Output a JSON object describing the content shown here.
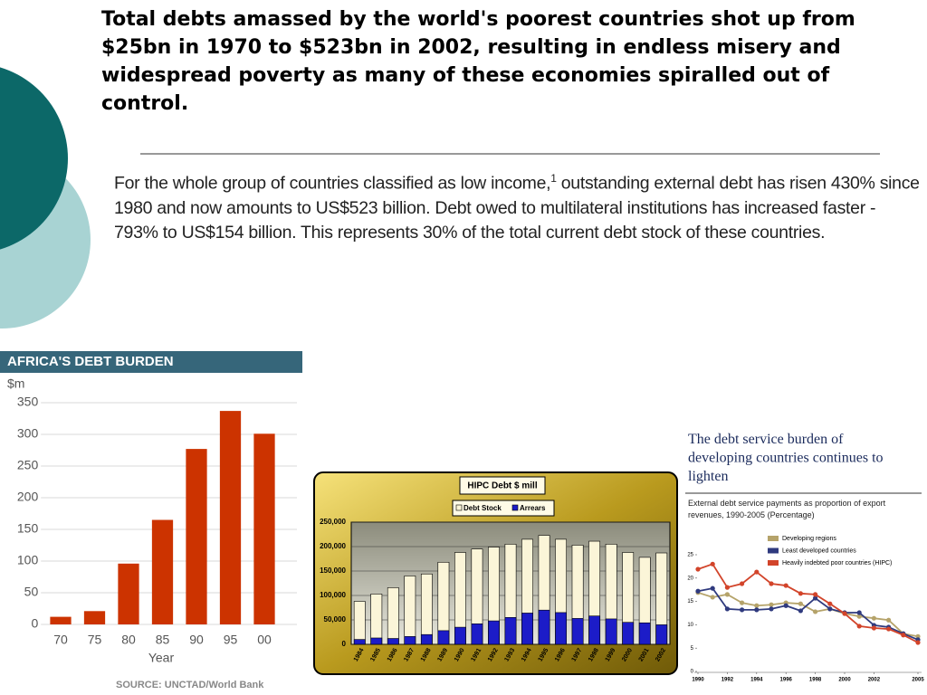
{
  "title": "Total debts amassed by the world's poorest countries shot up from $25bn in 1970 to $523bn in 2002, resulting in endless misery and widespread poverty as many of these economies spiralled out of control.",
  "paragraph": {
    "before": "For the whole group of countries classified as low income,",
    "footnote": "1",
    "after": " outstanding external debt has risen 430% since 1980 and now amounts to US$523 billion. Debt owed to multilateral institutions has increased faster - 793% to US$154 billion. This represents 30% of the total current debt stock of these countries."
  },
  "chart_data": [
    {
      "type": "bar",
      "title": "AFRICA'S DEBT BURDEN",
      "y_label": "$m",
      "x_label": "Year",
      "source": "SOURCE: UNCTAD/World Bank",
      "categories": [
        "70",
        "75",
        "80",
        "85",
        "90",
        "95",
        "00"
      ],
      "values": [
        12,
        21,
        96,
        165,
        277,
        337,
        301
      ],
      "color": "#cc3300",
      "ylim": [
        0,
        350
      ],
      "yticks": [
        0,
        50,
        100,
        150,
        200,
        250,
        300,
        350
      ],
      "grid": true
    },
    {
      "type": "bar",
      "title": "HIPC Debt $ mill",
      "categories": [
        "1984",
        "1985",
        "1986",
        "1987",
        "1988",
        "1989",
        "1990",
        "1991",
        "1992",
        "1993",
        "1994",
        "1995",
        "1996",
        "1997",
        "1998",
        "1999",
        "2000",
        "2001",
        "2002"
      ],
      "series": [
        {
          "name": "Debt Stock",
          "color": "#fbf5d8",
          "values": [
            88000,
            103000,
            116000,
            140000,
            144000,
            168000,
            188000,
            195000,
            199000,
            205000,
            215000,
            223000,
            215000,
            203000,
            211000,
            205000,
            188000,
            178000,
            187000
          ]
        },
        {
          "name": "Arrears",
          "color": "#1c1cc8",
          "values": [
            10000,
            13000,
            12000,
            16000,
            20000,
            28000,
            35000,
            42000,
            48000,
            55000,
            64000,
            70000,
            65000,
            53000,
            58000,
            52000,
            45000,
            44000,
            40000
          ]
        }
      ],
      "ylim": [
        0,
        250000
      ],
      "yticks": [
        0,
        {
          "value": 50000,
          "label": "50,000"
        },
        {
          "value": 100000,
          "label": "100,000"
        },
        {
          "value": 150000,
          "label": "150,000"
        },
        {
          "value": 200000,
          "label": "200,000"
        },
        {
          "value": 250000,
          "label": "250,000"
        }
      ],
      "grid": true
    },
    {
      "type": "line",
      "title": "The debt service burden of developing countries continues to lighten",
      "subtitle": "External debt service payments as proportion of export revenues, 1990-2005 (Percentage)",
      "x": [
        1990,
        1991,
        1992,
        1993,
        1994,
        1995,
        1996,
        1997,
        1998,
        1999,
        2000,
        2001,
        2002,
        2003,
        2004,
        2005
      ],
      "series": [
        {
          "name": "Developing regions",
          "color": "#b5a36a",
          "values": [
            16.9,
            15.9,
            16.5,
            14.7,
            14.1,
            14.3,
            14.7,
            14.5,
            12.8,
            13.4,
            12.4,
            11.8,
            11.4,
            11,
            8.1,
            7.5
          ]
        },
        {
          "name": "Least developed countries",
          "color": "#2f3a7e",
          "values": [
            17.2,
            17.8,
            13.4,
            13.2,
            13.2,
            13.4,
            14.1,
            13,
            15.7,
            13.4,
            12.6,
            12.6,
            9.9,
            9.5,
            8.1,
            6.8
          ]
        },
        {
          "name": "Heavily indebted poor countries (HIPC)",
          "color": "#d2442a",
          "values": [
            21.9,
            23,
            18,
            18.8,
            21.3,
            18.8,
            18.4,
            16.7,
            16.5,
            14.5,
            12.4,
            9.7,
            9.3,
            9.1,
            7.8,
            6.2
          ]
        }
      ],
      "xlim": [
        1990,
        2005
      ],
      "xticks": [
        1990,
        1992,
        1994,
        1996,
        1998,
        2000,
        2002,
        2005
      ],
      "ylim": [
        0,
        25
      ],
      "yticks": [
        0,
        5,
        10,
        15,
        20,
        25
      ],
      "legend": "upper right"
    }
  ]
}
